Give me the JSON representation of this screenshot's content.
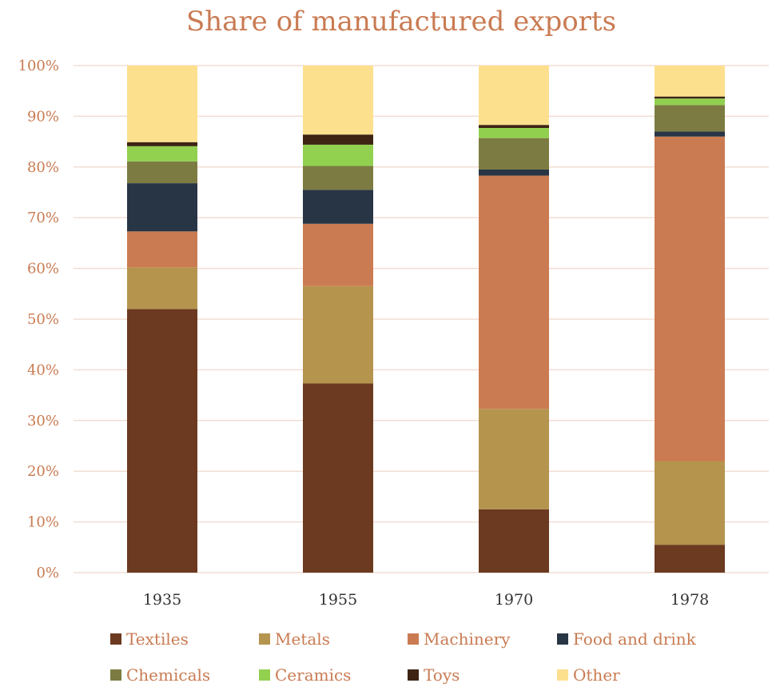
{
  "chart_data": {
    "type": "bar",
    "stacked": true,
    "title": "Share of manufactured exports",
    "xlabel": "",
    "ylabel": "",
    "categories": [
      "1935",
      "1955",
      "1970",
      "1978"
    ],
    "ylim": [
      0,
      1
    ],
    "yticks": [
      0,
      0.1,
      0.2,
      0.3,
      0.4,
      0.5,
      0.6,
      0.7,
      0.8,
      0.9,
      1.0
    ],
    "ytick_labels": [
      "0%",
      "10%",
      "20%",
      "30%",
      "40%",
      "50%",
      "60%",
      "70%",
      "80%",
      "90%",
      "100%"
    ],
    "grid": true,
    "legend_position": "bottom",
    "series": [
      {
        "name": "Textiles",
        "color": "#6B3A20",
        "values": [
          0.52,
          0.373,
          0.125,
          0.055
        ]
      },
      {
        "name": "Metals",
        "color": "#B5944E",
        "values": [
          0.082,
          0.192,
          0.198,
          0.165
        ]
      },
      {
        "name": "Machinery",
        "color": "#CB7B52",
        "values": [
          0.071,
          0.123,
          0.46,
          0.64
        ]
      },
      {
        "name": "Food and drink",
        "color": "#283545",
        "values": [
          0.095,
          0.067,
          0.012,
          0.01
        ]
      },
      {
        "name": "Chemicals",
        "color": "#7C7C42",
        "values": [
          0.043,
          0.047,
          0.062,
          0.052
        ]
      },
      {
        "name": "Ceramics",
        "color": "#92D050",
        "values": [
          0.03,
          0.042,
          0.02,
          0.013
        ]
      },
      {
        "name": "Toys",
        "color": "#3D2413",
        "values": [
          0.008,
          0.02,
          0.006,
          0.004
        ]
      },
      {
        "name": "Other",
        "color": "#FDE08E",
        "values": [
          0.151,
          0.136,
          0.117,
          0.061
        ]
      }
    ]
  }
}
